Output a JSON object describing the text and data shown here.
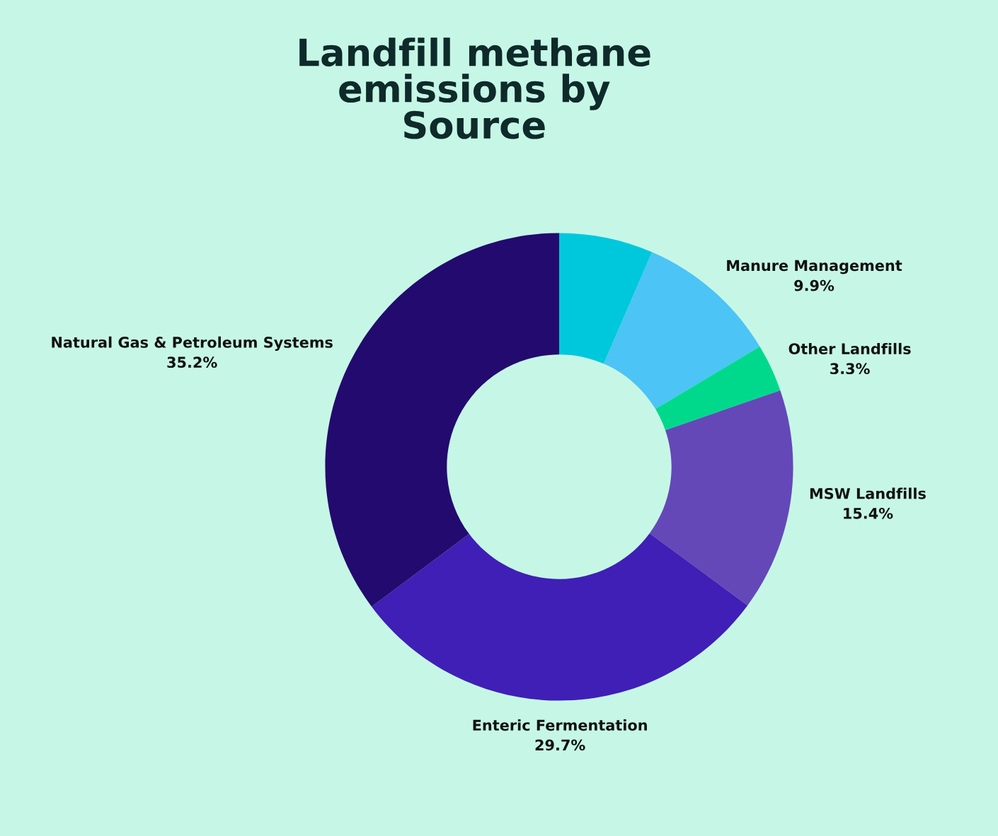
{
  "chart_data": {
    "type": "donut",
    "title": "Landfill methane\nemissions by\nSource",
    "categories": [
      null,
      "Manure Management",
      "Other Landfills",
      "MSW Landfills",
      "Enteric Fermentation",
      "Natural Gas & Petroleum Systems"
    ],
    "values": [
      6.5,
      9.9,
      3.3,
      15.4,
      29.7,
      35.2
    ],
    "value_labels": [
      null,
      "9.9%",
      "3.3%",
      "15.4%",
      "29.7%",
      "35.2%"
    ],
    "colors": [
      "#00c8dc",
      "#4cc4f5",
      "#00d98b",
      "#6448b8",
      "#3f1fb5",
      "#230a6e"
    ],
    "legend": false
  }
}
